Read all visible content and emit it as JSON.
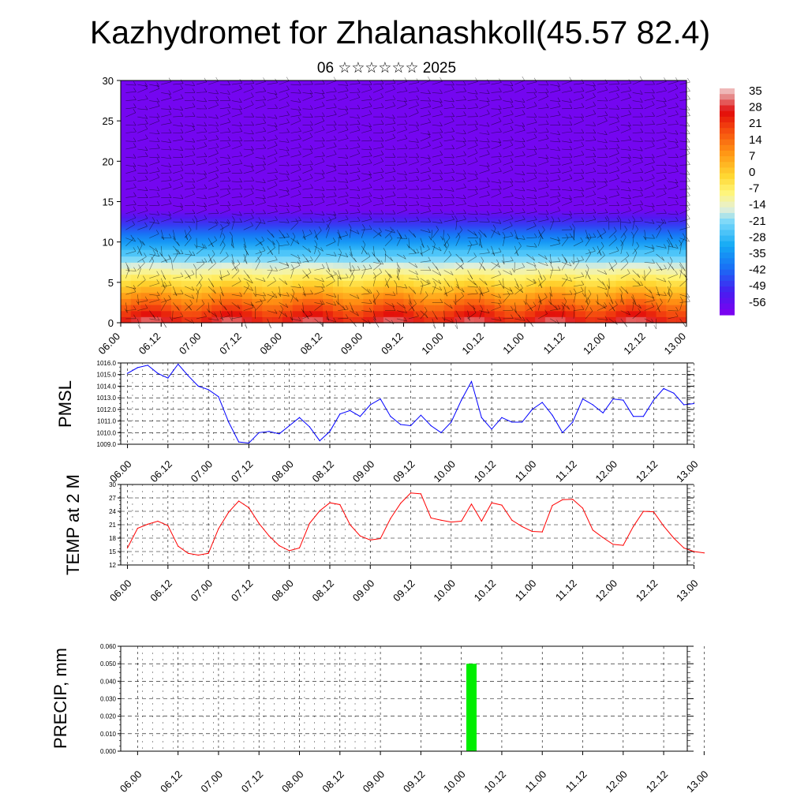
{
  "page": {
    "title": "Kazhydromet for Zhalanashkoll(45.57 82.4)",
    "subtitle": "06 ☆☆☆☆☆☆ 2025"
  },
  "time_ticks": [
    "06.00",
    "06.12",
    "07.00",
    "07.12",
    "08.00",
    "08.12",
    "09.00",
    "09.12",
    "10.00",
    "10.12",
    "11.00",
    "11.12",
    "12.00",
    "12.12",
    "13.00"
  ],
  "chart_data": [
    {
      "type": "heatmap",
      "y_ticks": [
        "0",
        "5",
        "10",
        "15",
        "20",
        "25",
        "30"
      ],
      "ylim": [
        0,
        30
      ],
      "colorbar": {
        "labels": [
          "35",
          "28",
          "21",
          "14",
          "7",
          "0",
          "-7",
          "-14",
          "-21",
          "-28",
          "-35",
          "-42",
          "-49",
          "-56"
        ],
        "range": [
          -60,
          38
        ]
      },
      "description_values": "temperature vs height (km) and time, with wind barbs"
    },
    {
      "type": "line",
      "ylabel": "PMSL",
      "ylim": [
        1009.0,
        1016.0
      ],
      "y_ticks": [
        "1016.0",
        "1015.0",
        "1014.0",
        "1013.0",
        "1012.0",
        "1011.0",
        "1010.0",
        "1009.0"
      ],
      "color": "#0000ff",
      "x_start": 0,
      "x_step": 3,
      "values": [
        1015.1,
        1015.6,
        1015.8,
        1015.1,
        1014.7,
        1015.9,
        1014.9,
        1014.0,
        1013.7,
        1013.1,
        1010.9,
        1009.2,
        1009.1,
        1010.0,
        1010.1,
        1009.9,
        1010.6,
        1011.3,
        1010.5,
        1009.3,
        1010.1,
        1011.6,
        1011.9,
        1011.4,
        1012.4,
        1012.9,
        1011.4,
        1010.7,
        1010.6,
        1011.5,
        1010.6,
        1010.0,
        1010.9,
        1012.8,
        1014.4,
        1011.3,
        1010.3,
        1011.3,
        1010.9,
        1010.9,
        1012.0,
        1012.6,
        1011.5,
        1010.0,
        1010.9,
        1012.9,
        1012.4,
        1011.7,
        1012.9,
        1012.8,
        1011.4,
        1011.4,
        1012.8,
        1013.8,
        1013.4,
        1012.4,
        1012.5
      ]
    },
    {
      "type": "line",
      "ylabel": "TEMP at 2 M",
      "ylim": [
        12,
        30
      ],
      "y_ticks": [
        "30",
        "27",
        "24",
        "21",
        "18",
        "15",
        "12"
      ],
      "color": "#ff0000",
      "x_start": 0,
      "x_step": 3,
      "values": [
        15.8,
        20.2,
        21.1,
        21.8,
        20.8,
        16.2,
        14.6,
        14.2,
        14.6,
        20.1,
        23.8,
        26.3,
        24.8,
        21.3,
        18.5,
        16.3,
        15.2,
        15.8,
        21.3,
        24.1,
        25.9,
        25.5,
        21.0,
        18.5,
        17.6,
        17.9,
        22.4,
        25.8,
        28.1,
        27.9,
        22.5,
        22.0,
        21.6,
        21.8,
        25.6,
        21.8,
        25.9,
        25.4,
        22.0,
        20.6,
        19.5,
        19.4,
        25.3,
        26.6,
        26.7,
        24.7,
        19.8,
        18.1,
        16.6,
        16.4,
        20.6,
        24.0,
        23.9,
        20.7,
        18.0,
        15.8,
        15.0,
        14.7
      ]
    },
    {
      "type": "bar",
      "ylabel": "PRECIP, mm",
      "ylim": [
        0,
        0.06
      ],
      "y_ticks": [
        "0.060",
        "0.050",
        "0.040",
        "0.030",
        "0.020",
        "0.010",
        "0.000"
      ],
      "color": "#00ee00",
      "bars": [
        {
          "t": 99,
          "value": 0.05
        }
      ]
    }
  ]
}
